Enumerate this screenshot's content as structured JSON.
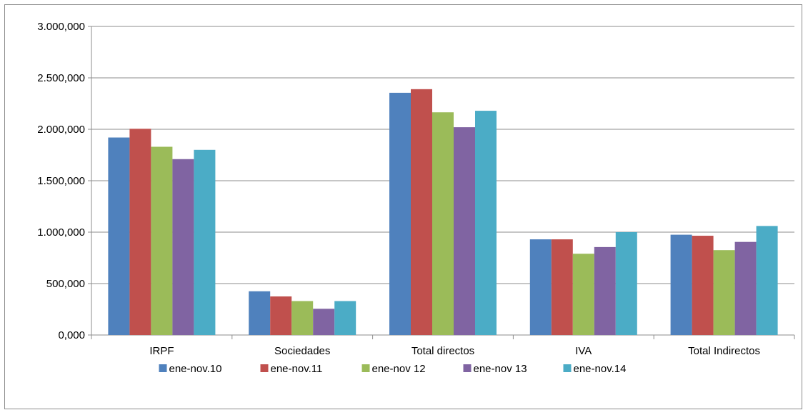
{
  "chart_data": {
    "type": "bar",
    "categories": [
      "IRPF",
      "Sociedades",
      "Total directos",
      "IVA",
      "Total Indirectos"
    ],
    "series": [
      {
        "name": "ene-nov.10",
        "color": "#4F81BD",
        "values": [
          1920000,
          425000,
          2355000,
          930000,
          975000
        ]
      },
      {
        "name": "ene-nov.11",
        "color": "#C0504D",
        "values": [
          2005000,
          375000,
          2390000,
          930000,
          965000
        ]
      },
      {
        "name": "ene-nov 12",
        "color": "#9BBB59",
        "values": [
          1830000,
          330000,
          2165000,
          790000,
          825000
        ]
      },
      {
        "name": "ene-nov 13",
        "color": "#8064A2",
        "values": [
          1710000,
          255000,
          2020000,
          855000,
          905000
        ]
      },
      {
        "name": "ene-nov.14",
        "color": "#4BACC6",
        "values": [
          1800000,
          330000,
          2180000,
          1000000,
          1060000
        ]
      }
    ],
    "ylim": [
      0,
      3000000
    ],
    "y_ticks": [
      0,
      500000,
      1000000,
      1500000,
      2000000,
      2500000,
      3000000
    ],
    "y_tick_labels": [
      "0,000",
      "500,000",
      "1.000,000",
      "1.500,000",
      "2.000,000",
      "2.500,000",
      "3.000,000"
    ],
    "grid": true,
    "legend_position": "bottom",
    "title": "",
    "xlabel": "",
    "ylabel": ""
  }
}
